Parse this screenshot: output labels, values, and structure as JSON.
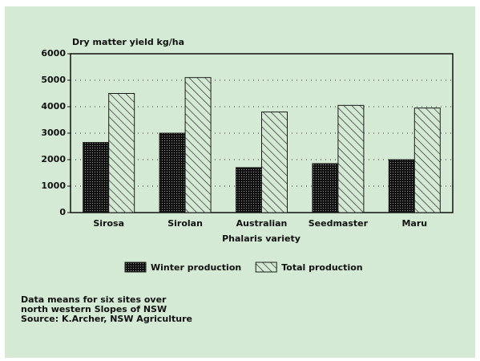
{
  "chart_data": {
    "type": "bar",
    "y_axis_label": "Dry matter yield kg/ha",
    "x_axis_label": "Phalaris variety",
    "categories": [
      "Sirosa",
      "Sirolan",
      "Australian",
      "Seedmaster",
      "Maru"
    ],
    "series": [
      {
        "name": "Winter production",
        "color": "#1a1a1a",
        "pattern": "dots",
        "values": [
          2650,
          3000,
          1700,
          1850,
          2000
        ]
      },
      {
        "name": "Total production",
        "color": "#1a1a1a",
        "pattern": "hatch",
        "values": [
          4500,
          5100,
          3800,
          4050,
          3950
        ]
      }
    ],
    "ylim": [
      0,
      6000
    ],
    "yticks": [
      0,
      1000,
      2000,
      3000,
      4000,
      5000,
      6000
    ],
    "grid": true,
    "legend": "bottom",
    "notes": [
      "Data means for six sites over",
      "north western Slopes of NSW",
      "Source: K.Archer, NSW Agriculture"
    ]
  }
}
